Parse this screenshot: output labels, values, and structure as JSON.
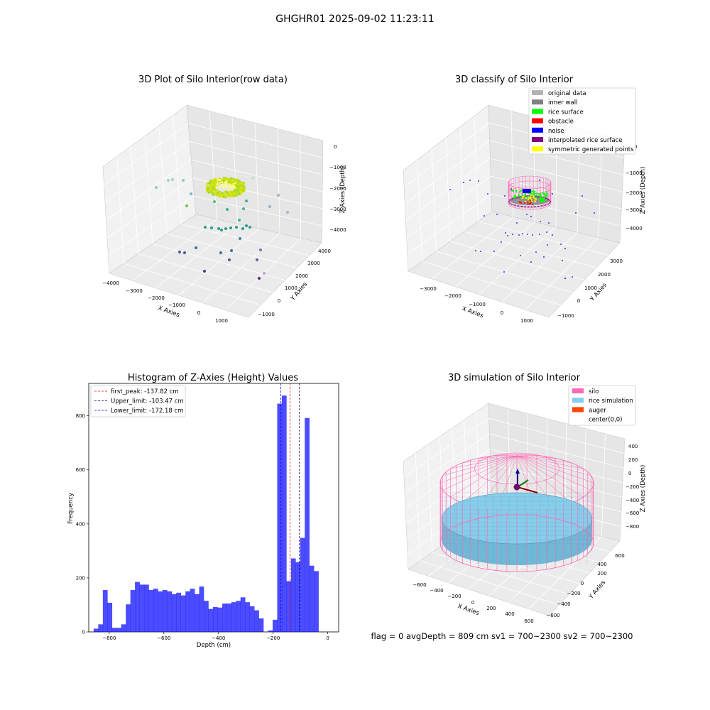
{
  "suptitle": "GHGHR01 2025-09-02 11:23:11",
  "footer": "flag = 0     avgDepth = 809 cm  sv1 = 700~2300  sv2 = 700~2300",
  "plot1": {
    "title": "3D Plot of Silo Interior(row data)",
    "xlabel": "X Axies",
    "ylabel": "Y Axies",
    "zlabel": "Z Axies (Depth)",
    "xticks": [
      "−4000",
      "−3000",
      "−2000",
      "−1000",
      "0",
      "1000"
    ],
    "yticks": [
      "−1000",
      "0",
      "1000",
      "2000",
      "3000",
      "4000"
    ],
    "zticks": [
      "0",
      "−1000",
      "−2000",
      "−3000",
      "−4000"
    ]
  },
  "plot2": {
    "title": "3D classify of Silo Interior",
    "xlabel": "X Axies",
    "ylabel": "Y Axies",
    "zlabel": "Z Axies (Depth)",
    "xticks": [
      "−3000",
      "−2000",
      "−1000",
      "0",
      "1000"
    ],
    "yticks": [
      "−1000",
      "0",
      "1000",
      "2000",
      "3000"
    ],
    "zticks": [
      "0",
      "−1000",
      "−2000",
      "−3000",
      "−4000"
    ],
    "legend": [
      {
        "label": "original data",
        "color": "#b3b3b3"
      },
      {
        "label": "inner wall",
        "color": "#808080"
      },
      {
        "label": "rice surface",
        "color": "#00ff00"
      },
      {
        "label": "obstacle",
        "color": "#ff0000"
      },
      {
        "label": "noise",
        "color": "#0000ff"
      },
      {
        "label": "interpolated rice surface",
        "color": "#800080"
      },
      {
        "label": "symmetric generated points",
        "color": "#ffff00"
      }
    ]
  },
  "plot4": {
    "title": "3D simulation of Silo Interior",
    "xlabel": "X Axies",
    "ylabel": "Y Axies",
    "zlabel": "Z Axies (Depth)",
    "xticks": [
      "−600",
      "−400",
      "−200",
      "0",
      "200",
      "400",
      "600"
    ],
    "yticks": [
      "−600",
      "−400",
      "−200",
      "0",
      "200",
      "400",
      "600"
    ],
    "zticks": [
      "400",
      "200",
      "0",
      "−200",
      "−400",
      "−600",
      "−800"
    ],
    "legend": [
      {
        "label": "silo",
        "color": "#ff69b4"
      },
      {
        "label": "rice simulation",
        "color": "#87ceeb"
      },
      {
        "label": "auger",
        "color": "#ff4500"
      },
      {
        "label": "center(0,0)",
        "color": "#ffffff"
      }
    ]
  },
  "chart_data": [
    {
      "type": "bar",
      "title": "Histogram of Z-Axies (Height) Values",
      "xlabel": "Depth (cm)",
      "ylabel": "Frequency",
      "xlim": [
        -875,
        40
      ],
      "ylim": [
        0,
        920
      ],
      "xticks": [
        -800,
        -600,
        -400,
        -200,
        0
      ],
      "xtick_labels": [
        "−800",
        "−600",
        "−400",
        "−200",
        "0"
      ],
      "yticks": [
        0,
        200,
        400,
        600,
        800
      ],
      "bin_start": -857,
      "bin_width": 16.8,
      "values": [
        12,
        28,
        155,
        108,
        15,
        15,
        28,
        102,
        155,
        185,
        175,
        175,
        155,
        160,
        150,
        155,
        150,
        140,
        145,
        135,
        150,
        160,
        140,
        168,
        115,
        85,
        92,
        90,
        105,
        105,
        110,
        115,
        128,
        110,
        95,
        80,
        50,
        0,
        5,
        45,
        845,
        875,
        188,
        272,
        258,
        348,
        792,
        245,
        225
      ],
      "color": "#0000ff",
      "vlines": [
        {
          "label": "first_peak: -137.82 cm",
          "x": -137.82,
          "color": "#ff0000"
        },
        {
          "label": "Upper_limit: -103.47 cm",
          "x": -103.47,
          "color": "#00008b"
        },
        {
          "label": "Lower_limit: -172.18 cm",
          "x": -172.18,
          "color": "#0000ff"
        }
      ]
    }
  ]
}
